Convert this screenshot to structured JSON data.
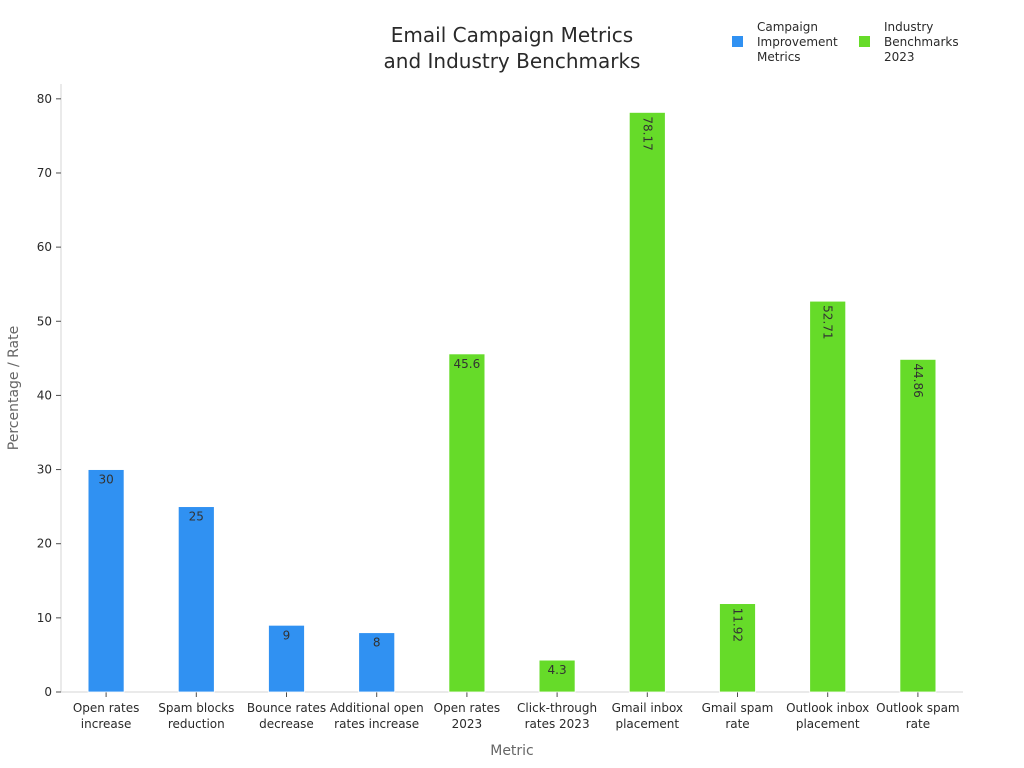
{
  "chart_data": {
    "type": "bar",
    "title": [
      "Email Campaign Metrics",
      "and Industry Benchmarks"
    ],
    "xlabel": "Metric",
    "ylabel": "Percentage / Rate",
    "ylim": [
      0,
      82
    ],
    "yticks": [
      0,
      10,
      20,
      30,
      40,
      50,
      60,
      70,
      80
    ],
    "grid": false,
    "legend_position": "top-right",
    "categories": [
      [
        "Open rates",
        "increase"
      ],
      [
        "Spam blocks",
        "reduction"
      ],
      [
        "Bounce rates",
        "decrease"
      ],
      [
        "Additional open",
        "rates increase"
      ],
      [
        "Open rates",
        "2023"
      ],
      [
        "Click-through",
        "rates 2023"
      ],
      [
        "Gmail inbox",
        "placement"
      ],
      [
        "Gmail spam",
        "rate"
      ],
      [
        "Outlook inbox",
        "placement"
      ],
      [
        "Outlook spam",
        "rate"
      ]
    ],
    "series": [
      {
        "name": [
          "Campaign",
          "Improvement",
          "Metrics"
        ],
        "color": "#3091f2",
        "values": [
          30,
          25,
          9,
          8,
          null,
          null,
          null,
          null,
          null,
          null
        ],
        "labels": [
          "30",
          "25",
          "9",
          "8",
          null,
          null,
          null,
          null,
          null,
          null
        ],
        "label_rotated": [
          false,
          false,
          false,
          false,
          false,
          false,
          false,
          false,
          false,
          false
        ]
      },
      {
        "name": [
          "Industry",
          "Benchmarks",
          "2023"
        ],
        "color": "#66db29",
        "values": [
          null,
          null,
          null,
          null,
          45.6,
          4.3,
          78.17,
          11.92,
          52.71,
          44.86
        ],
        "labels": [
          null,
          null,
          null,
          null,
          "45.6",
          "4.3",
          "78.17",
          "11.92",
          "52.71",
          "44.86"
        ],
        "label_rotated": [
          false,
          false,
          false,
          false,
          false,
          false,
          true,
          true,
          true,
          true
        ]
      }
    ]
  }
}
